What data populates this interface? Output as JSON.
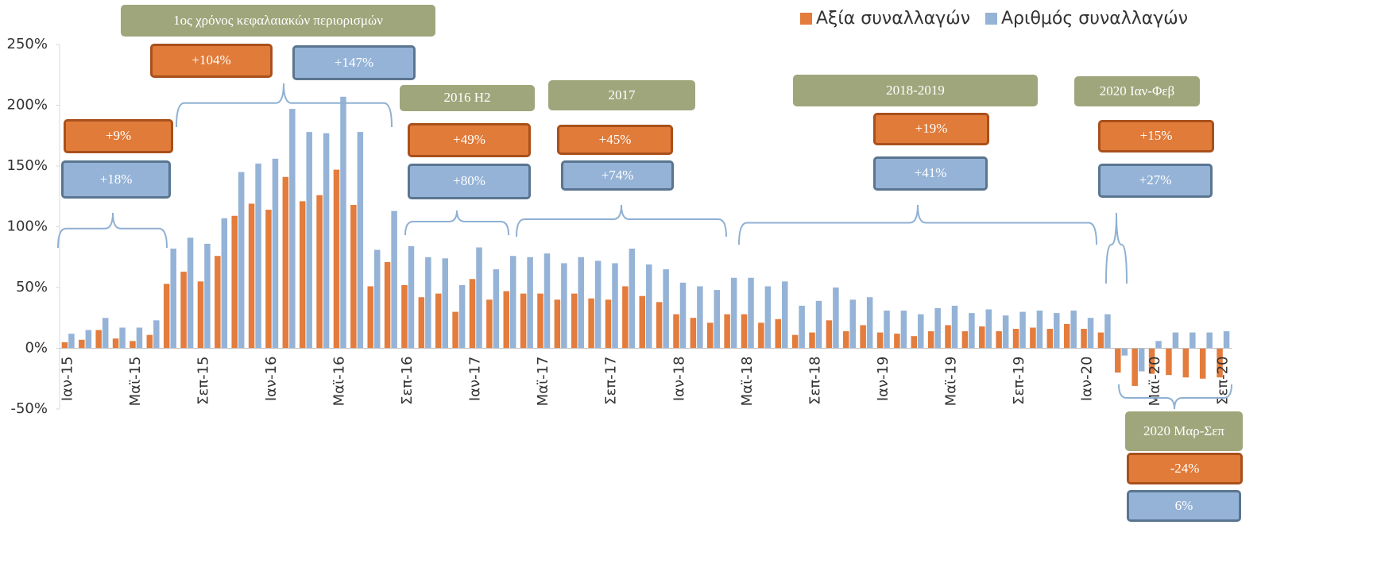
{
  "chart_data": {
    "type": "bar",
    "categories": [
      "Ιαν-15",
      null,
      null,
      null,
      "Μαϊ-15",
      null,
      null,
      null,
      "Σεπ-15",
      null,
      null,
      null,
      "Ιαν-16",
      null,
      null,
      null,
      "Μαϊ-16",
      null,
      null,
      null,
      "Σεπ-16",
      null,
      null,
      null,
      "Ιαν-17",
      null,
      null,
      null,
      "Μαϊ-17",
      null,
      null,
      null,
      "Σεπ-17",
      null,
      null,
      null,
      "Ιαν-18",
      null,
      null,
      null,
      "Μαϊ-18",
      null,
      null,
      null,
      "Σεπ-18",
      null,
      null,
      null,
      "Ιαν-19",
      null,
      null,
      null,
      "Μαϊ-19",
      null,
      null,
      null,
      "Σεπ-19",
      null,
      null,
      null,
      "Ιαν-20",
      null,
      null,
      null,
      "Μαϊ-20",
      null,
      null,
      null,
      "Σεπ-20"
    ],
    "series": [
      {
        "name": "Αξία συναλλαγών",
        "color": "#e37c3c",
        "values": [
          5,
          7,
          15,
          8,
          6,
          11,
          53,
          63,
          55,
          76,
          109,
          119,
          114,
          141,
          121,
          126,
          147,
          118,
          51,
          71,
          52,
          42,
          45,
          30,
          57,
          40,
          47,
          45,
          45,
          40,
          45,
          41,
          40,
          51,
          43,
          38,
          28,
          25,
          21,
          28,
          28,
          21,
          24,
          11,
          13,
          23,
          14,
          19,
          13,
          12,
          10,
          14,
          19,
          14,
          18,
          14,
          16,
          17,
          16,
          20,
          16,
          13,
          -20,
          -31,
          -21,
          -22,
          -24,
          -25,
          -24
        ]
      },
      {
        "name": "Αριθμός συναλλαγών",
        "color": "#95b3d7",
        "values": [
          12,
          15,
          25,
          17,
          17,
          23,
          82,
          91,
          86,
          107,
          145,
          152,
          156,
          197,
          178,
          177,
          207,
          178,
          81,
          113,
          84,
          75,
          74,
          52,
          83,
          65,
          76,
          75,
          78,
          70,
          75,
          72,
          70,
          82,
          69,
          65,
          54,
          51,
          48,
          58,
          58,
          51,
          55,
          35,
          39,
          50,
          40,
          42,
          31,
          31,
          28,
          33,
          35,
          29,
          32,
          27,
          30,
          31,
          29,
          31,
          25,
          28,
          -6,
          -19,
          6,
          13,
          13,
          13,
          14
        ]
      }
    ],
    "ylim": [
      -50,
      250
    ],
    "yticks": [
      {
        "value": -50,
        "label": "-50%"
      },
      {
        "value": 0,
        "label": "0%"
      },
      {
        "value": 50,
        "label": "50%"
      },
      {
        "value": 100,
        "label": "100%"
      },
      {
        "value": 150,
        "label": "150%"
      },
      {
        "value": 200,
        "label": "200%"
      },
      {
        "value": 250,
        "label": "250%"
      }
    ],
    "annotations": [
      {
        "value_change": "+9%",
        "count_change": "+18%"
      },
      {
        "period": "1ος χρόνος κεφαλαιακών περιορισμών",
        "value_change": "+104%",
        "count_change": "+147%"
      },
      {
        "period": "2016 H2",
        "value_change": "+49%",
        "count_change": "+80%"
      },
      {
        "period": "2017",
        "value_change": "+45%",
        "count_change": "+74%"
      },
      {
        "period": "2018-2019",
        "value_change": "+19%",
        "count_change": "+41%"
      },
      {
        "period": "2020 Ιαν-Φεβ",
        "value_change": "+15%",
        "count_change": "+27%"
      },
      {
        "period": "2020 Μαρ-Σεπ",
        "value_change": "-24%",
        "count_change": "6%"
      }
    ]
  }
}
